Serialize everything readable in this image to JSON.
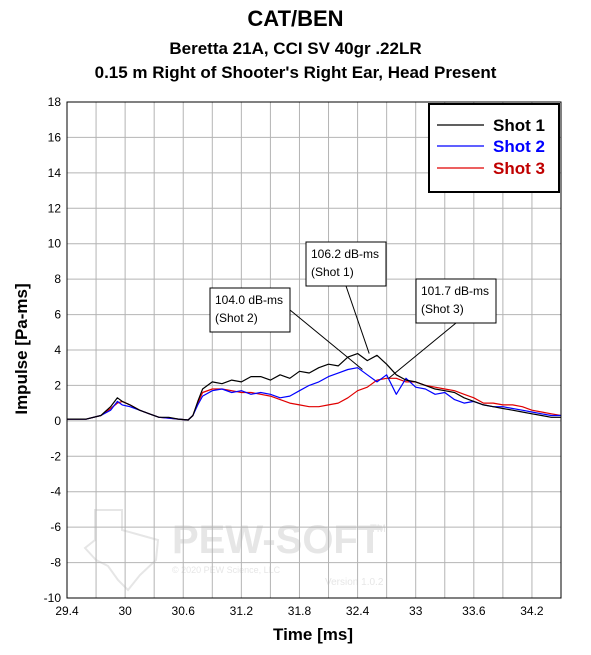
{
  "chart_data": {
    "type": "line",
    "title": "CAT/BEN",
    "subtitle": "Beretta 21A, CCI SV 40gr .22LR",
    "subtitle2": "0.15 m Right of Shooter's Right Ear, Head Present",
    "xlabel": "Time [ms]",
    "ylabel": "Impulse [Pa-ms]",
    "xlim": [
      29.4,
      34.5
    ],
    "ylim": [
      -10,
      18
    ],
    "xticks": [
      "29.4",
      "30",
      "30.6",
      "31.2",
      "31.8",
      "32.4",
      "33",
      "33.6",
      "34.2"
    ],
    "yticks": [
      "18",
      "16",
      "14",
      "12",
      "10",
      "8",
      "6",
      "4",
      "2",
      "0",
      "-2",
      "-4",
      "-6",
      "-8",
      "-10"
    ],
    "grid": true,
    "legend_position": "top-right",
    "series": [
      {
        "name": "Shot 1",
        "color": "#000000",
        "x": [
          29.4,
          29.6,
          29.75,
          29.85,
          29.92,
          29.97,
          30.05,
          30.15,
          30.25,
          30.35,
          30.45,
          30.55,
          30.65,
          30.7,
          30.75,
          30.8,
          30.9,
          31.0,
          31.1,
          31.2,
          31.3,
          31.4,
          31.5,
          31.6,
          31.7,
          31.8,
          31.9,
          32.0,
          32.1,
          32.2,
          32.3,
          32.4,
          32.5,
          32.6,
          32.7,
          32.8,
          32.9,
          33.0,
          33.1,
          33.2,
          33.3,
          33.4,
          33.5,
          33.6,
          33.7,
          33.8,
          33.9,
          34.0,
          34.1,
          34.2,
          34.3,
          34.4,
          34.5
        ],
        "values": [
          0.1,
          0.1,
          0.3,
          0.8,
          1.3,
          1.1,
          0.9,
          0.6,
          0.4,
          0.2,
          0.2,
          0.1,
          0.05,
          0.3,
          1.1,
          1.8,
          2.2,
          2.1,
          2.3,
          2.2,
          2.5,
          2.5,
          2.3,
          2.6,
          2.4,
          2.8,
          2.7,
          3.0,
          3.2,
          3.1,
          3.6,
          3.8,
          3.4,
          3.7,
          3.2,
          2.6,
          2.3,
          2.2,
          2.0,
          1.8,
          1.7,
          1.6,
          1.3,
          1.1,
          0.9,
          0.8,
          0.7,
          0.6,
          0.5,
          0.4,
          0.3,
          0.2,
          0.2
        ]
      },
      {
        "name": "Shot 2",
        "color": "#0000ff",
        "x": [
          29.4,
          29.6,
          29.75,
          29.85,
          29.92,
          29.97,
          30.05,
          30.15,
          30.25,
          30.35,
          30.45,
          30.55,
          30.65,
          30.7,
          30.75,
          30.8,
          30.9,
          31.0,
          31.1,
          31.2,
          31.3,
          31.4,
          31.5,
          31.6,
          31.7,
          31.8,
          31.9,
          32.0,
          32.1,
          32.2,
          32.3,
          32.4,
          32.5,
          32.6,
          32.7,
          32.8,
          32.9,
          33.0,
          33.1,
          33.2,
          33.3,
          33.4,
          33.5,
          33.6,
          33.7,
          33.8,
          33.9,
          34.0,
          34.1,
          34.2,
          34.3,
          34.4,
          34.5
        ],
        "values": [
          0.1,
          0.1,
          0.3,
          0.6,
          1.1,
          0.9,
          0.8,
          0.6,
          0.4,
          0.2,
          0.15,
          0.1,
          0.05,
          0.3,
          0.9,
          1.4,
          1.7,
          1.8,
          1.6,
          1.7,
          1.5,
          1.6,
          1.5,
          1.3,
          1.4,
          1.7,
          2.0,
          2.2,
          2.5,
          2.7,
          2.9,
          3.0,
          2.6,
          2.2,
          2.6,
          1.5,
          2.4,
          1.9,
          1.8,
          1.5,
          1.6,
          1.2,
          1.0,
          1.1,
          0.9,
          0.8,
          0.8,
          0.7,
          0.6,
          0.5,
          0.4,
          0.3,
          0.3
        ]
      },
      {
        "name": "Shot 3",
        "color": "#e00000",
        "x": [
          29.4,
          29.6,
          29.75,
          29.85,
          29.92,
          29.97,
          30.05,
          30.15,
          30.25,
          30.35,
          30.45,
          30.55,
          30.65,
          30.7,
          30.75,
          30.8,
          30.9,
          31.0,
          31.1,
          31.2,
          31.3,
          31.4,
          31.5,
          31.6,
          31.7,
          31.8,
          31.9,
          32.0,
          32.1,
          32.2,
          32.3,
          32.4,
          32.5,
          32.6,
          32.7,
          32.8,
          32.9,
          33.0,
          33.1,
          33.2,
          33.3,
          33.4,
          33.5,
          33.6,
          33.7,
          33.8,
          33.9,
          34.0,
          34.1,
          34.2,
          34.3,
          34.4,
          34.5
        ],
        "values": [
          0.1,
          0.1,
          0.3,
          0.7,
          1.0,
          1.1,
          0.9,
          0.6,
          0.4,
          0.2,
          0.15,
          0.1,
          0.05,
          0.3,
          1.0,
          1.6,
          1.8,
          1.8,
          1.7,
          1.6,
          1.6,
          1.5,
          1.4,
          1.2,
          1.0,
          0.9,
          0.8,
          0.8,
          0.9,
          1.0,
          1.3,
          1.7,
          1.9,
          2.3,
          2.4,
          2.4,
          2.2,
          2.2,
          2.0,
          1.9,
          1.8,
          1.7,
          1.5,
          1.3,
          1.0,
          1.0,
          0.9,
          0.9,
          0.8,
          0.6,
          0.5,
          0.4,
          0.3
        ]
      }
    ],
    "annotations": [
      {
        "line1": "104.0 dB-ms",
        "line2": "(Shot 2)",
        "target_x": 32.45,
        "target_y": 2.9
      },
      {
        "line1": "106.2 dB-ms",
        "line2": "(Shot 1)",
        "target_x": 32.52,
        "target_y": 3.8
      },
      {
        "line1": "101.7 dB-ms",
        "line2": "(Shot 3)",
        "target_x": 32.72,
        "target_y": 2.4
      }
    ]
  },
  "watermark": {
    "brand": "PEW-SOFT",
    "tm": "TM",
    "copyright": "© 2020 PEW Science, LLC",
    "version": "Version 1.0.2"
  }
}
